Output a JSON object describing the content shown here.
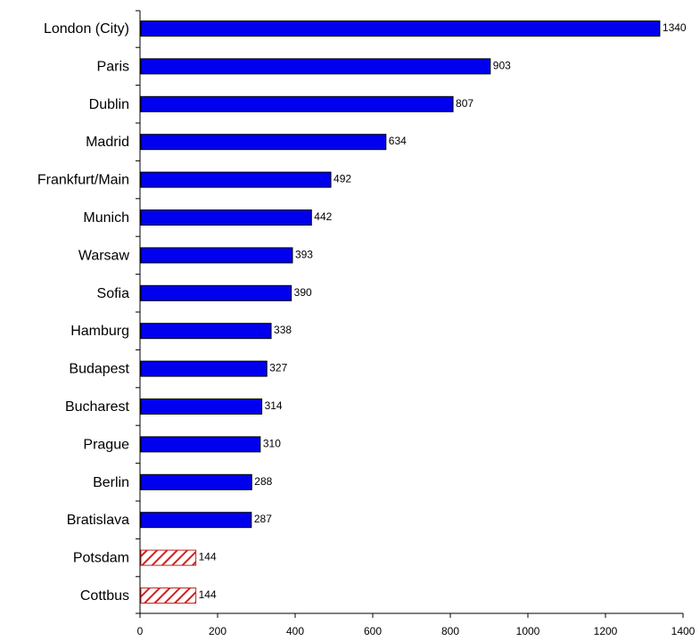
{
  "chart_data": {
    "type": "bar",
    "orientation": "horizontal",
    "categories": [
      "London (City)",
      "Paris",
      "Dublin",
      "Madrid",
      "Frankfurt/Main",
      "Munich",
      "Warsaw",
      "Sofia",
      "Hamburg",
      "Budapest",
      "Bucharest",
      "Prague",
      "Berlin",
      "Bratislava",
      "Potsdam",
      "Cottbus"
    ],
    "values": [
      1340,
      903,
      807,
      634,
      492,
      442,
      393,
      390,
      338,
      327,
      314,
      310,
      288,
      287,
      144,
      144
    ],
    "value_labels": [
      "1340",
      "903",
      "807",
      "634",
      "492",
      "442",
      "393",
      "390",
      "338",
      "327",
      "314",
      "310",
      "288",
      "287",
      "144",
      "144"
    ],
    "highlighted": [
      false,
      false,
      false,
      false,
      false,
      false,
      false,
      false,
      false,
      false,
      false,
      false,
      false,
      false,
      true,
      true
    ],
    "colors": {
      "bar": "#0000ee",
      "highlight": "#cc2222",
      "axis": "#000000"
    },
    "xlim": [
      0,
      1400
    ],
    "xticks": [
      0,
      200,
      400,
      600,
      800,
      1000,
      1200,
      1400
    ],
    "title": "",
    "xlabel": "",
    "ylabel": "",
    "grid": false,
    "legend": "none"
  }
}
